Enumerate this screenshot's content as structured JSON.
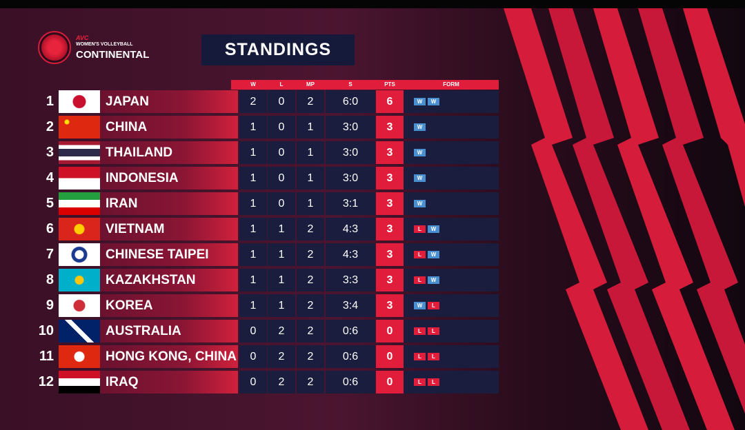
{
  "header": {
    "org": "AVC",
    "event_line1": "WOMEN'S VOLLEYBALL",
    "event_line2": "CONTINENTAL",
    "title": "STANDINGS"
  },
  "table": {
    "columns": [
      "W",
      "L",
      "MP",
      "S",
      "PTS",
      "FORM"
    ],
    "rows": [
      {
        "rank": 1,
        "team": "JAPAN",
        "w": 2,
        "l": 0,
        "mp": 2,
        "s": "6:0",
        "pts": 6,
        "form": [
          "W",
          "W"
        ]
      },
      {
        "rank": 2,
        "team": "CHINA",
        "w": 1,
        "l": 0,
        "mp": 1,
        "s": "3:0",
        "pts": 3,
        "form": [
          "W"
        ]
      },
      {
        "rank": 3,
        "team": "THAILAND",
        "w": 1,
        "l": 0,
        "mp": 1,
        "s": "3:0",
        "pts": 3,
        "form": [
          "W"
        ]
      },
      {
        "rank": 4,
        "team": "INDONESIA",
        "w": 1,
        "l": 0,
        "mp": 1,
        "s": "3:0",
        "pts": 3,
        "form": [
          "W"
        ]
      },
      {
        "rank": 5,
        "team": "IRAN",
        "w": 1,
        "l": 0,
        "mp": 1,
        "s": "3:1",
        "pts": 3,
        "form": [
          "W"
        ]
      },
      {
        "rank": 6,
        "team": "VIETNAM",
        "w": 1,
        "l": 1,
        "mp": 2,
        "s": "4:3",
        "pts": 3,
        "form": [
          "L",
          "W"
        ]
      },
      {
        "rank": 7,
        "team": "CHINESE TAIPEI",
        "w": 1,
        "l": 1,
        "mp": 2,
        "s": "4:3",
        "pts": 3,
        "form": [
          "L",
          "W"
        ]
      },
      {
        "rank": 8,
        "team": "KAZAKHSTAN",
        "w": 1,
        "l": 1,
        "mp": 2,
        "s": "3:3",
        "pts": 3,
        "form": [
          "L",
          "W"
        ]
      },
      {
        "rank": 9,
        "team": "KOREA",
        "w": 1,
        "l": 1,
        "mp": 2,
        "s": "3:4",
        "pts": 3,
        "form": [
          "W",
          "L"
        ]
      },
      {
        "rank": 10,
        "team": "AUSTRALIA",
        "w": 0,
        "l": 2,
        "mp": 2,
        "s": "0:6",
        "pts": 0,
        "form": [
          "L",
          "L"
        ]
      },
      {
        "rank": 11,
        "team": "HONG KONG, CHINA",
        "w": 0,
        "l": 2,
        "mp": 2,
        "s": "0:6",
        "pts": 0,
        "form": [
          "L",
          "L"
        ]
      },
      {
        "rank": 12,
        "team": "IRAQ",
        "w": 0,
        "l": 2,
        "mp": 2,
        "s": "0:6",
        "pts": 0,
        "form": [
          "L",
          "L"
        ]
      }
    ]
  }
}
